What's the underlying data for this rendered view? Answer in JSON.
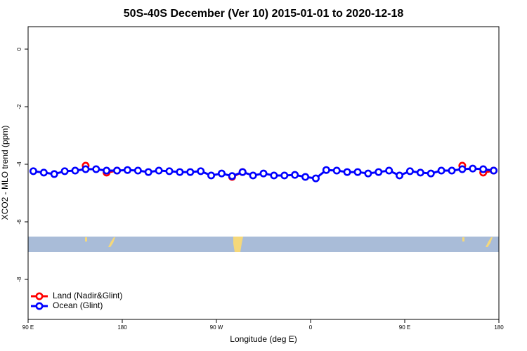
{
  "chart_data": {
    "type": "line",
    "title": "50S-40S December (Ver 10)   2015-01-01 to 2020-12-18",
    "x_label": "Longitude (deg E)",
    "y_label": "XCO2 - MLO trend (ppm)",
    "x": [
      95,
      105,
      115,
      125,
      135,
      145,
      155,
      165,
      175,
      185,
      195,
      205,
      215,
      225,
      235,
      245,
      255,
      265,
      275,
      285,
      295,
      305,
      315,
      325,
      335,
      345,
      355,
      365,
      375,
      385,
      395,
      405,
      415,
      425,
      435,
      445,
      455,
      465,
      475,
      485,
      495,
      505,
      515,
      525,
      535
    ],
    "series": [
      {
        "name": "Land (Nadir&Glint)",
        "color": "#ff0000",
        "values": [
          null,
          null,
          null,
          null,
          null,
          -4.05,
          null,
          -4.29,
          -4.22,
          null,
          null,
          null,
          null,
          null,
          null,
          null,
          null,
          null,
          null,
          -4.44,
          -4.27,
          null,
          null,
          null,
          null,
          null,
          null,
          null,
          null,
          null,
          null,
          null,
          null,
          null,
          null,
          null,
          null,
          null,
          null,
          null,
          null,
          -4.05,
          null,
          -4.29,
          -4.22
        ]
      },
      {
        "name": "Ocean (Glint)",
        "color": "#0000ff",
        "values": [
          -4.24,
          -4.29,
          -4.34,
          -4.24,
          -4.22,
          -4.17,
          -4.17,
          -4.22,
          -4.22,
          -4.2,
          -4.22,
          -4.27,
          -4.22,
          -4.24,
          -4.27,
          -4.27,
          -4.24,
          -4.39,
          -4.32,
          -4.41,
          -4.27,
          -4.39,
          -4.32,
          -4.39,
          -4.39,
          -4.37,
          -4.44,
          -4.49,
          -4.2,
          -4.22,
          -4.27,
          -4.27,
          -4.32,
          -4.27,
          -4.22,
          -4.39,
          -4.24,
          -4.29,
          -4.32,
          -4.22,
          -4.22,
          -4.17,
          -4.15,
          -4.17,
          -4.22
        ]
      }
    ],
    "xlim": [
      90,
      540
    ],
    "xticks": [
      {
        "value": 90,
        "label": "90 E"
      },
      180,
      {
        "value": 270,
        "label": "90 W"
      },
      {
        "value": 360,
        "label": "0"
      },
      {
        "value": 450,
        "label": "90 E"
      },
      {
        "value": 540,
        "label": "180"
      }
    ],
    "ylim": [
      -9.39,
      0.78
    ],
    "yticks": [
      0,
      -2,
      -4,
      -6,
      -8
    ],
    "legend": "lower left"
  }
}
